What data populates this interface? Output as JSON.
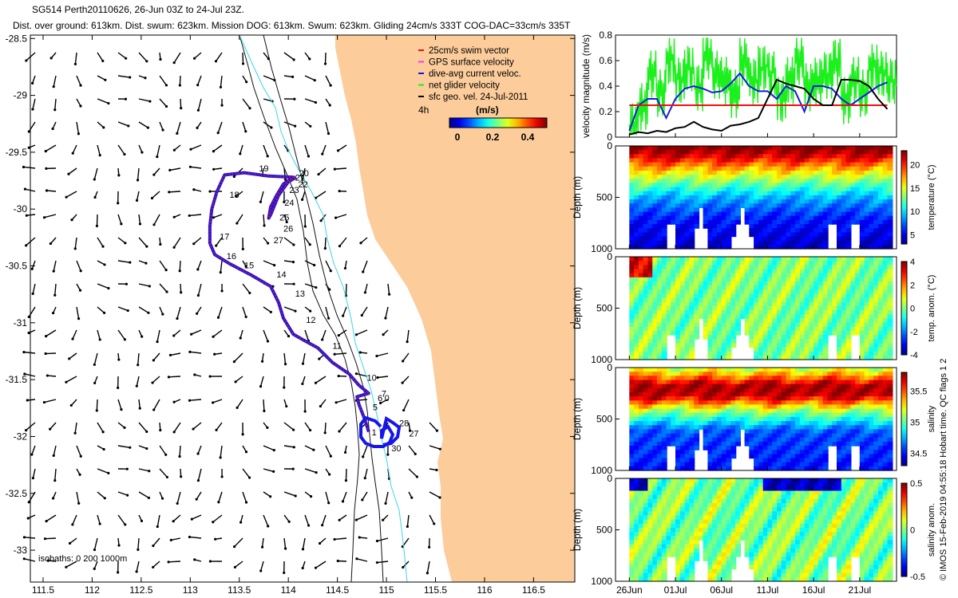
{
  "header": {
    "line1": "SG514 Perth20110626, 26-Jun 03Z to 24-Jul 23Z.",
    "line2": "Dist. over ground: 613km. Dist. swum: 623km. Mission DOG: 613km. Swum: 623km. Gliding 24cm/s 333T COG-DAC=33cm/s 335T"
  },
  "side_note": "© IMOS 15-Feb-2019 04:55:18 Hobart time. QC flags 1  2",
  "colors": {
    "land": "#fccc9b",
    "track": "#1616e8",
    "track_red": "#ee1111",
    "isobath": "#111111",
    "coast_river": "#3ad6e6",
    "net_velocity": "#1cf01c",
    "dac_line": "#1a1ae0",
    "swim_line": "#ee1111",
    "geo_line": "#000000"
  },
  "chart_data": [
    {
      "type": "map",
      "xticks": [
        "111.5",
        "112",
        "112.5",
        "113",
        "113.5",
        "114",
        "114.5",
        "115",
        "115.5",
        "116",
        "116.5"
      ],
      "yticks": [
        "-28.5",
        "-29",
        "-29.5",
        "-30",
        "-30.5",
        "-31",
        "-31.5",
        "-32",
        "-32.5",
        "-33"
      ],
      "xlim": [
        111.37,
        116.92
      ],
      "ylim": [
        -33.28,
        -28.47
      ],
      "legend": {
        "entries": [
          {
            "label": "25cm/s swim vector",
            "color": "#ee1111"
          },
          {
            "label": "GPS surface velocity",
            "color": "#ff33ff"
          },
          {
            "label": "dive-avg current veloc.",
            "color": "#1616e8"
          },
          {
            "label": "net glider velocity",
            "color": "#1cf01c"
          },
          {
            "label": "sfc geo. vel. 24-Jul-2011",
            "color": "#000000"
          }
        ],
        "scale_label": "4h",
        "colorbar_title": "(m/s)",
        "colorbar_ticks": [
          "0",
          "0.2",
          "0.4"
        ]
      },
      "isobaths_label": "isobaths: 0   200  1000m",
      "track": [
        [
          114.82,
          -31.96
        ],
        [
          114.78,
          -31.85
        ],
        [
          114.72,
          -31.72
        ],
        [
          114.7,
          -31.65
        ],
        [
          114.78,
          -31.63
        ],
        [
          114.82,
          -31.62
        ],
        [
          114.72,
          -31.55
        ],
        [
          114.62,
          -31.45
        ],
        [
          114.45,
          -31.35
        ],
        [
          114.3,
          -31.22
        ],
        [
          114.15,
          -31.15
        ],
        [
          114.05,
          -31.1
        ],
        [
          113.95,
          -30.96
        ],
        [
          113.9,
          -30.82
        ],
        [
          113.82,
          -30.68
        ],
        [
          113.62,
          -30.58
        ],
        [
          113.4,
          -30.48
        ],
        [
          113.25,
          -30.4
        ],
        [
          113.2,
          -30.3
        ],
        [
          113.2,
          -30.15
        ],
        [
          113.22,
          -30.0
        ],
        [
          113.27,
          -29.85
        ],
        [
          113.35,
          -29.7
        ],
        [
          113.55,
          -29.68
        ],
        [
          113.8,
          -29.71
        ],
        [
          114.05,
          -29.72
        ],
        [
          113.95,
          -29.78
        ],
        [
          113.88,
          -29.88
        ],
        [
          113.82,
          -29.98
        ],
        [
          113.8,
          -30.08
        ],
        [
          113.82,
          -30.05
        ],
        [
          113.9,
          -29.88
        ],
        [
          114.0,
          -29.76
        ],
        [
          114.08,
          -29.72
        ]
      ],
      "track_labels": [
        {
          "t": "19",
          "x": 113.7,
          "y": -29.67
        },
        {
          "t": "20",
          "x": 114.11,
          "y": -29.71
        },
        {
          "t": "21",
          "x": 114.07,
          "y": -29.75
        },
        {
          "t": "22",
          "x": 114.1,
          "y": -29.81
        },
        {
          "t": "23",
          "x": 114.01,
          "y": -29.86
        },
        {
          "t": "24",
          "x": 113.96,
          "y": -29.97
        },
        {
          "t": "25",
          "x": 113.91,
          "y": -30.1
        },
        {
          "t": "26",
          "x": 113.95,
          "y": -30.2
        },
        {
          "t": "27",
          "x": 113.85,
          "y": -30.3
        },
        {
          "t": "18",
          "x": 113.4,
          "y": -29.9
        },
        {
          "t": "17",
          "x": 113.3,
          "y": -30.27
        },
        {
          "t": "16",
          "x": 113.37,
          "y": -30.44
        },
        {
          "t": "15",
          "x": 113.55,
          "y": -30.52
        },
        {
          "t": "14",
          "x": 113.88,
          "y": -30.6
        },
        {
          "t": "13",
          "x": 114.07,
          "y": -30.77
        },
        {
          "t": "12",
          "x": 114.18,
          "y": -31.0
        },
        {
          "t": "11",
          "x": 114.45,
          "y": -31.23
        },
        {
          "t": "10",
          "x": 114.8,
          "y": -31.51
        },
        {
          "t": "7",
          "x": 114.95,
          "y": -31.65
        },
        {
          "t": "6",
          "x": 114.91,
          "y": -31.69
        },
        {
          "t": "5",
          "x": 114.86,
          "y": -31.77
        },
        {
          "t": "1",
          "x": 114.85,
          "y": -31.99
        },
        {
          "t": "28",
          "x": 115.13,
          "y": -31.91
        },
        {
          "t": "27",
          "x": 115.23,
          "y": -32.0
        },
        {
          "t": "30",
          "x": 115.05,
          "y": -32.13
        },
        {
          "t": "0",
          "x": 114.98,
          "y": -31.69
        }
      ]
    },
    {
      "type": "line",
      "ylabel": "velocity magnitude (m/s)",
      "ylim": [
        0,
        0.8
      ],
      "yticks": [
        "0",
        "0.2",
        "0.4",
        "0.6",
        "0.8"
      ],
      "x": [
        0,
        1,
        2,
        3,
        4,
        5,
        6,
        7,
        8,
        9,
        10,
        11,
        12,
        13,
        14,
        15,
        16,
        17,
        18,
        19,
        20,
        21,
        22,
        23,
        24,
        25,
        26,
        27,
        28
      ],
      "series": [
        {
          "role": "net",
          "values": [
            0.1,
            0.25,
            0.5,
            0.35,
            0.6,
            0.45,
            0.55,
            0.4,
            0.65,
            0.5,
            0.45,
            0.35,
            0.6,
            0.45,
            0.55,
            0.5,
            0.3,
            0.45,
            0.6,
            0.4,
            0.45,
            0.5,
            0.6,
            0.3,
            0.45,
            0.35,
            0.55,
            0.5,
            0.45
          ]
        },
        {
          "role": "dac",
          "values": [
            0.05,
            0.25,
            0.3,
            0.3,
            0.15,
            0.3,
            0.38,
            0.4,
            0.38,
            0.35,
            0.36,
            0.42,
            0.5,
            0.4,
            0.36,
            0.36,
            0.3,
            0.4,
            0.36,
            0.2,
            0.4,
            0.4,
            0.38,
            0.3,
            0.25,
            0.3,
            0.35,
            0.4,
            0.43
          ]
        },
        {
          "role": "swim",
          "values": [
            0.25,
            0.25,
            0.25,
            0.25,
            0.25,
            0.25,
            0.25,
            0.25,
            0.25,
            0.25,
            0.25,
            0.25,
            0.25,
            0.25,
            0.25,
            0.25,
            0.25,
            0.25,
            0.25,
            0.25,
            0.25,
            0.25,
            0.25,
            0.25,
            0.25,
            0.25,
            0.25,
            0.25,
            0.25
          ]
        },
        {
          "role": "geo",
          "values": [
            0.02,
            0.04,
            0.03,
            0.05,
            0.04,
            0.07,
            0.08,
            0.12,
            0.08,
            0.06,
            0.05,
            0.09,
            0.1,
            0.12,
            0.15,
            0.3,
            0.45,
            0.42,
            0.4,
            0.38,
            0.3,
            0.25,
            0.25,
            0.45,
            0.45,
            0.44,
            0.4,
            0.3,
            0.22
          ]
        }
      ]
    },
    {
      "type": "heatmap",
      "ylabel": "Depth (m)",
      "yticks": [
        "0",
        "500",
        "1000"
      ],
      "cbar_label": "temperature (°C)",
      "cbar_ticks": [
        "5",
        "10",
        "15",
        "20"
      ],
      "cbar_range": [
        3,
        23
      ],
      "profile": [
        [
          0,
          23
        ],
        [
          90,
          21
        ],
        [
          200,
          17
        ],
        [
          330,
          13
        ],
        [
          480,
          9
        ],
        [
          680,
          6
        ],
        [
          1000,
          4
        ]
      ]
    },
    {
      "type": "heatmap",
      "ylabel": "Depth (m)",
      "yticks": [
        "0",
        "500",
        "1000"
      ],
      "cbar_label": "temp. anom. (°C)",
      "cbar_ticks": [
        "-4",
        "-2",
        "0",
        "2",
        "4"
      ],
      "cbar_range": [
        -4,
        4
      ]
    },
    {
      "type": "heatmap",
      "ylabel": "Depth (m)",
      "yticks": [
        "0",
        "500",
        "1000"
      ],
      "cbar_label": "salinity",
      "cbar_ticks": [
        "34.5",
        "35",
        "35.5"
      ],
      "cbar_range": [
        34.3,
        35.8
      ],
      "profile": [
        [
          0,
          35.2
        ],
        [
          90,
          35.5
        ],
        [
          150,
          35.75
        ],
        [
          260,
          35.7
        ],
        [
          400,
          35.1
        ],
        [
          600,
          34.6
        ],
        [
          1000,
          34.5
        ]
      ]
    },
    {
      "type": "heatmap",
      "ylabel": "Depth (m)",
      "yticks": [
        "0",
        "500",
        "1000"
      ],
      "cbar_label": "salinity anom.",
      "cbar_ticks": [
        "-0.5",
        "0",
        "0.5"
      ],
      "cbar_range": [
        -0.5,
        0.5
      ]
    }
  ],
  "time_axis": {
    "ticks": [
      "26Jun",
      "01Jul",
      "06Jul",
      "11Jul",
      "16Jul",
      "21Jul"
    ],
    "tick_days": [
      0,
      5,
      10,
      15,
      20,
      25
    ],
    "xlim": [
      -1.5,
      29.0
    ]
  }
}
